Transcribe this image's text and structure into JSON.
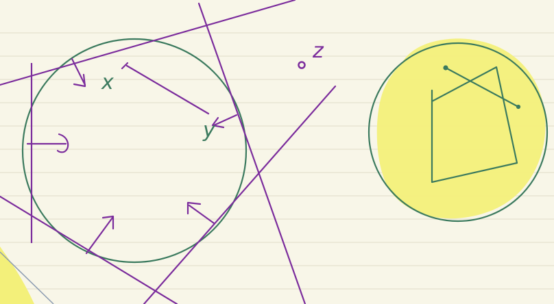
{
  "colors": {
    "paper": "#f8f6e8",
    "rule_line": "#e4e1cf",
    "green": "#3b7a5e",
    "purple": "#7b2c9c",
    "highlight": "#f3f07a",
    "corner_line": "#8a9ab0"
  },
  "labels": {
    "x_point": "x",
    "y_point": "y",
    "z_point": "z"
  }
}
